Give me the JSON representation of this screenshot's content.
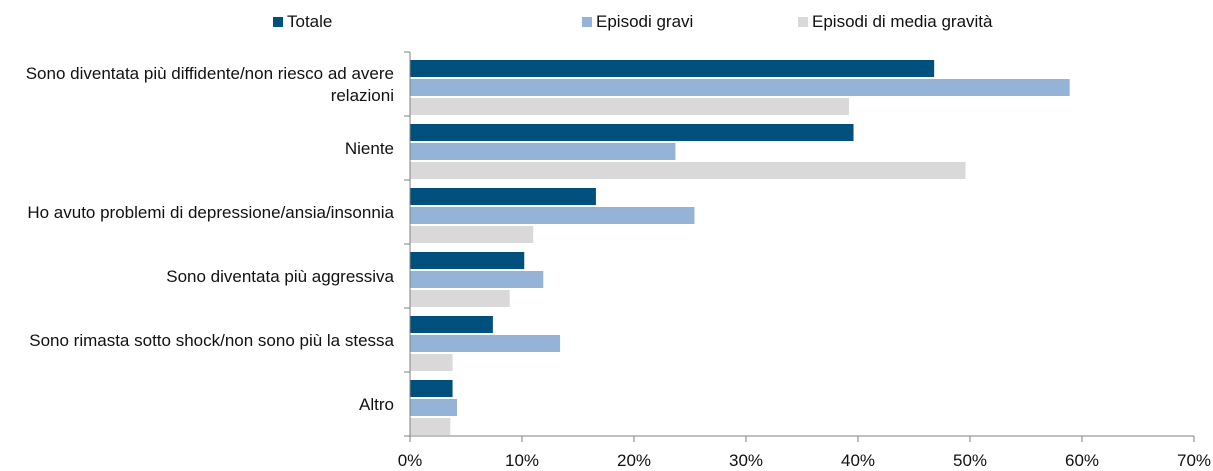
{
  "chart_data": {
    "type": "bar",
    "orientation": "horizontal",
    "categories": [
      [
        "Sono diventata più diffidente/non riesco ad avere",
        "relazioni"
      ],
      [
        "Niente"
      ],
      [
        "Ho avuto problemi di depressione/ansia/insonnia"
      ],
      [
        "Sono diventata più aggressiva"
      ],
      [
        "Sono rimasta sotto shock/non sono più la stessa"
      ],
      [
        "Altro"
      ]
    ],
    "series": [
      {
        "name": "Totale",
        "color": "#00507d",
        "values": [
          46.8,
          39.6,
          16.6,
          10.2,
          7.4,
          3.8
        ]
      },
      {
        "name": "Episodi gravi",
        "color": "#95b3d7",
        "values": [
          58.9,
          23.7,
          25.4,
          11.9,
          13.4,
          4.2
        ]
      },
      {
        "name": "Episodi di media gravità",
        "color": "#d9d9d9",
        "values": [
          39.2,
          49.6,
          11.0,
          8.9,
          3.8,
          3.6
        ]
      }
    ],
    "xlim": [
      0,
      70
    ],
    "xticks": [
      "0%",
      "10%",
      "20%",
      "30%",
      "40%",
      "50%",
      "60%",
      "70%"
    ],
    "grid": false,
    "legend_position": "top"
  }
}
